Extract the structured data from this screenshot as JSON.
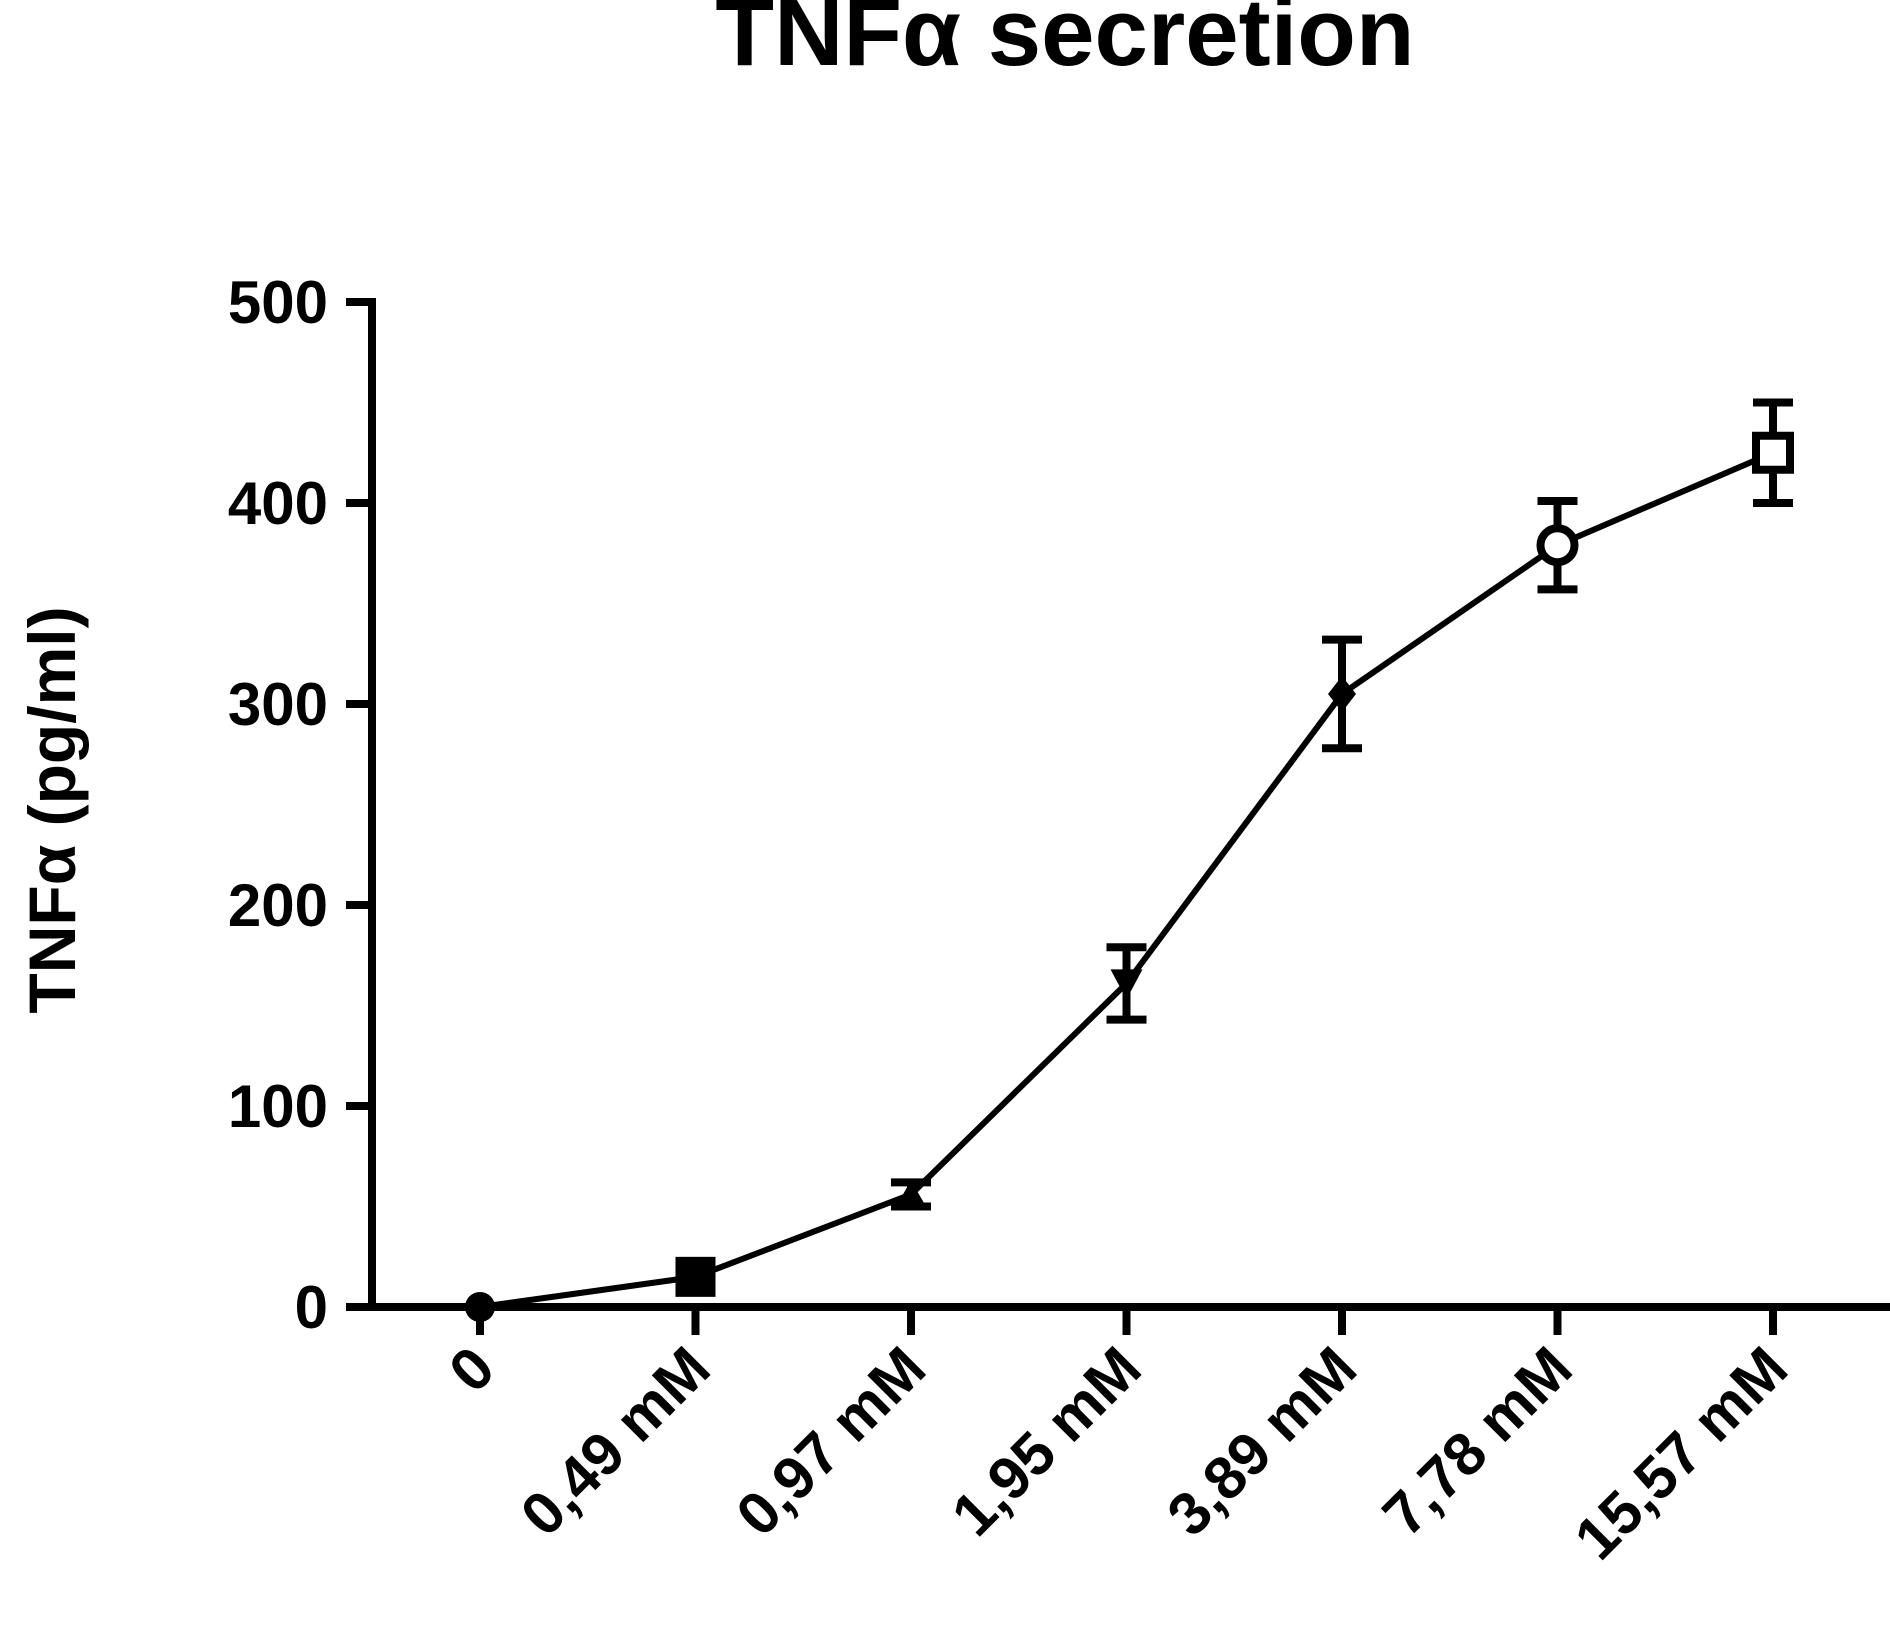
{
  "chart_data": {
    "type": "line",
    "title": "TNFα secretion",
    "xlabel": "",
    "ylabel": "TNFα (pg/ml)",
    "categories": [
      "0",
      "0,49 mM",
      "0,97 mM",
      "1,95 mM",
      "3,89 mM",
      "7,78 mM",
      "15,57 mM"
    ],
    "ylim": [
      0,
      500
    ],
    "yticks": [
      0,
      100,
      200,
      300,
      400,
      500
    ],
    "ytick_labels": [
      "0",
      "100",
      "200",
      "300",
      "400",
      "500"
    ],
    "grid": false,
    "legend": "none",
    "series": [
      {
        "values": [
          0,
          15,
          56,
          161,
          305,
          379,
          425
        ],
        "errors": [
          0,
          3,
          6,
          18,
          27,
          22,
          25
        ],
        "markers": [
          "circle",
          "square",
          "triangle-up",
          "triangle-down",
          "diamond",
          "circle-open",
          "square-open"
        ],
        "color": "#000000"
      }
    ]
  }
}
